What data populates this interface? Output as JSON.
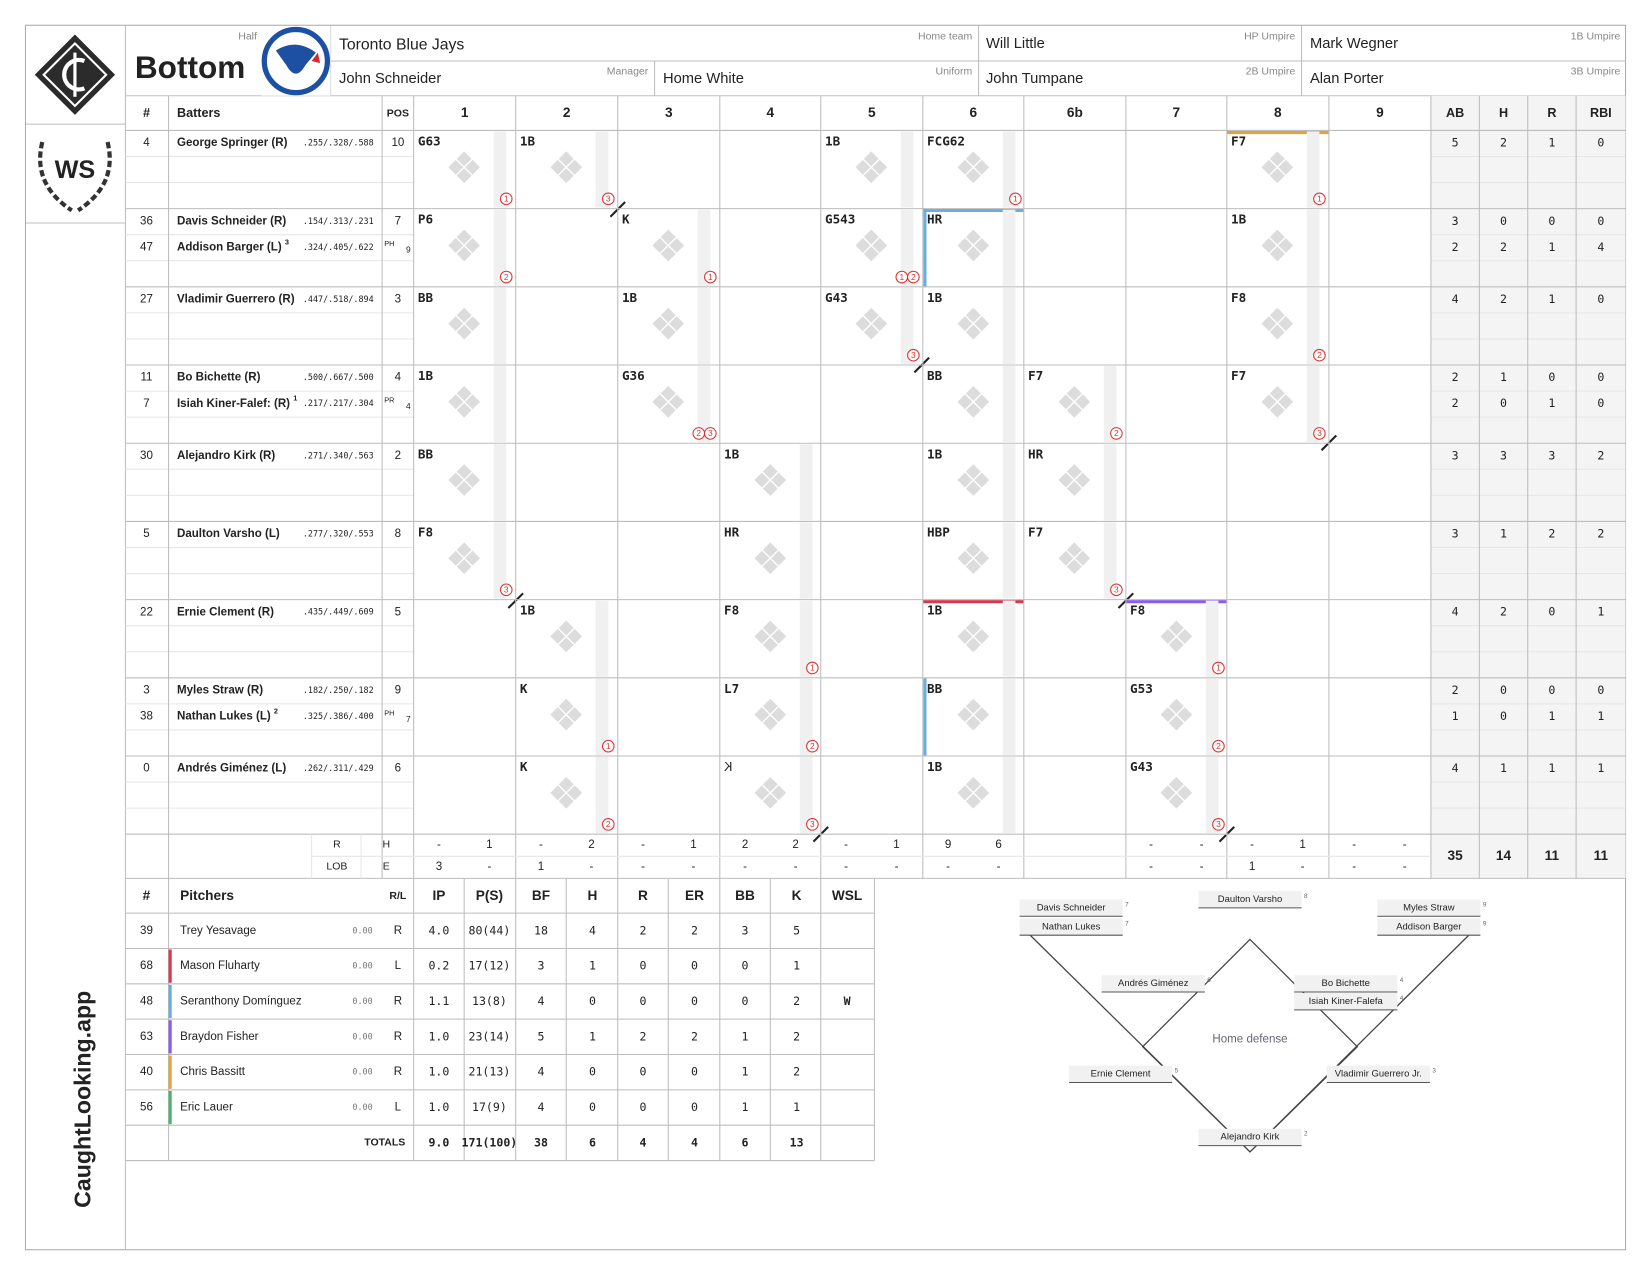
{
  "header": {
    "half_label": "Half",
    "half": "Bottom",
    "team": "Toronto Blue Jays",
    "team_label": "Home team",
    "manager": "John Schneider",
    "manager_label": "Manager",
    "uniform": "Home White",
    "uniform_label": "Uniform",
    "umpires": [
      {
        "name": "Will Little",
        "role": "HP Umpire"
      },
      {
        "name": "Mark Wegner",
        "role": "1B Umpire"
      },
      {
        "name": "John Tumpane",
        "role": "2B Umpire"
      },
      {
        "name": "Alan Porter",
        "role": "3B Umpire"
      }
    ]
  },
  "sidebar": {
    "badge": "WS",
    "brand": "CaughtLooking.app"
  },
  "lineup": {
    "columns": [
      "#",
      "Batters",
      "POS"
    ],
    "innings": [
      "1",
      "2",
      "3",
      "4",
      "5",
      "6",
      "6b",
      "7",
      "8",
      "9"
    ],
    "stats": [
      "AB",
      "H",
      "R",
      "RBI"
    ],
    "slots": [
      {
        "players": [
          {
            "num": 4,
            "name": "George Springer (R)",
            "avg": ".255/.328/.588",
            "pos": 10,
            "ab": 5,
            "h": 2,
            "r": 1,
            "rbi": 0
          }
        ],
        "plays": [
          {
            "result": "G63",
            "outs": [
              1
            ]
          },
          {
            "result": "1B",
            "outs": [
              3
            ]
          },
          null,
          null,
          {
            "result": "1B",
            "outs": []
          },
          {
            "result": "FCG62",
            "outs": [
              1
            ]
          },
          null,
          null,
          {
            "result": "F7",
            "outs": [
              1
            ]
          },
          null
        ]
      },
      {
        "players": [
          {
            "num": 36,
            "name": "Davis Schneider (R)",
            "avg": ".154/.313/.231",
            "pos": 7,
            "ab": 3,
            "h": 0,
            "r": 0,
            "rbi": 0
          },
          {
            "num": 47,
            "name": "Addison Barger (L)",
            "note": 3,
            "avg": ".324/.405/.622",
            "sub": "PH",
            "pos": 9,
            "ab": 2,
            "h": 2,
            "r": 1,
            "rbi": 4
          }
        ],
        "plays": [
          {
            "result": "P6",
            "outs": [
              2
            ]
          },
          null,
          {
            "result": "K",
            "outs": [
              1
            ]
          },
          null,
          {
            "result": "G543",
            "outs": [
              1,
              2
            ]
          },
          {
            "result": "HR",
            "outs": []
          },
          null,
          null,
          {
            "result": "1B",
            "outs": []
          },
          null
        ]
      },
      {
        "players": [
          {
            "num": 27,
            "name": "Vladimir Guerrero  (R)",
            "avg": ".447/.518/.894",
            "pos": 3,
            "ab": 4,
            "h": 2,
            "r": 1,
            "rbi": 0
          }
        ],
        "plays": [
          {
            "result": "BB",
            "outs": []
          },
          null,
          {
            "result": "1B",
            "outs": []
          },
          null,
          {
            "result": "G43",
            "outs": [
              3
            ]
          },
          {
            "result": "1B",
            "outs": []
          },
          null,
          null,
          {
            "result": "F8",
            "outs": [
              2
            ]
          },
          null
        ]
      },
      {
        "players": [
          {
            "num": 11,
            "name": "Bo Bichette  (R)",
            "avg": ".500/.667/.500",
            "pos": 4,
            "ab": 2,
            "h": 1,
            "r": 0,
            "rbi": 0
          },
          {
            "num": 7,
            "name": "Isiah Kiner-Falef: (R)",
            "note": 1,
            "avg": ".217/.217/.304",
            "sub": "PR",
            "pos": 4,
            "ab": 2,
            "h": 0,
            "r": 1,
            "rbi": 0
          }
        ],
        "plays": [
          {
            "result": "1B",
            "outs": []
          },
          null,
          {
            "result": "G36",
            "outs": [
              2,
              3
            ]
          },
          null,
          null,
          {
            "result": "BB",
            "outs": []
          },
          {
            "result": "F7",
            "outs": [
              2
            ]
          },
          null,
          {
            "result": "F7",
            "outs": [
              3
            ]
          },
          null
        ]
      },
      {
        "players": [
          {
            "num": 30,
            "name": "Alejandro Kirk  (R)",
            "avg": ".271/.340/.563",
            "pos": 2,
            "ab": 3,
            "h": 3,
            "r": 3,
            "rbi": 2
          }
        ],
        "plays": [
          {
            "result": "BB",
            "outs": []
          },
          null,
          null,
          {
            "result": "1B",
            "outs": []
          },
          null,
          {
            "result": "1B",
            "outs": []
          },
          {
            "result": "HR",
            "outs": []
          },
          null,
          null,
          null
        ]
      },
      {
        "players": [
          {
            "num": 5,
            "name": "Daulton Varsho  (L)",
            "avg": ".277/.320/.553",
            "pos": 8,
            "ab": 3,
            "h": 1,
            "r": 2,
            "rbi": 2
          }
        ],
        "plays": [
          {
            "result": "F8",
            "outs": [
              3
            ]
          },
          null,
          null,
          {
            "result": "HR",
            "outs": []
          },
          null,
          {
            "result": "HBP",
            "outs": []
          },
          {
            "result": "F7",
            "outs": [
              3
            ]
          },
          null,
          null,
          null
        ]
      },
      {
        "players": [
          {
            "num": 22,
            "name": "Ernie Clement  (R)",
            "avg": ".435/.449/.609",
            "pos": 5,
            "ab": 4,
            "h": 2,
            "r": 0,
            "rbi": 1
          }
        ],
        "plays": [
          null,
          {
            "result": "1B",
            "outs": []
          },
          null,
          {
            "result": "F8",
            "outs": [
              1
            ]
          },
          null,
          {
            "result": "1B",
            "outs": []
          },
          null,
          {
            "result": "F8",
            "outs": [
              1
            ]
          },
          null,
          null
        ]
      },
      {
        "players": [
          {
            "num": 3,
            "name": "Myles Straw  (R)",
            "avg": ".182/.250/.182",
            "pos": 9,
            "ab": 2,
            "h": 0,
            "r": 0,
            "rbi": 0
          },
          {
            "num": 38,
            "name": "Nathan Lukes  (L)",
            "note": 2,
            "avg": ".325/.386/.400",
            "sub": "PH",
            "pos": 7,
            "ab": 1,
            "h": 0,
            "r": 1,
            "rbi": 1
          }
        ],
        "plays": [
          null,
          {
            "result": "K",
            "outs": [
              1
            ]
          },
          null,
          {
            "result": "L7",
            "outs": [
              2
            ]
          },
          null,
          {
            "result": "BB",
            "outs": []
          },
          null,
          {
            "result": "G53",
            "outs": [
              2
            ]
          },
          null,
          null
        ]
      },
      {
        "players": [
          {
            "num": 0,
            "name": "Andrés Giménez  (L)",
            "avg": ".262/.311/.429",
            "pos": 6,
            "ab": 4,
            "h": 1,
            "r": 1,
            "rbi": 1
          }
        ],
        "plays": [
          null,
          {
            "result": "K",
            "outs": [
              2
            ]
          },
          null,
          {
            "result": "K",
            "called": true,
            "outs": [
              3
            ]
          },
          null,
          {
            "result": "1B",
            "outs": []
          },
          null,
          {
            "result": "G43",
            "outs": [
              3
            ]
          },
          null,
          null
        ]
      }
    ],
    "summary": {
      "labels": [
        "R",
        "H",
        "LOB",
        "E"
      ],
      "runs": [
        "-",
        "-",
        "-",
        2,
        "-",
        9,
        null,
        "-",
        "-",
        "-"
      ],
      "hits": [
        1,
        2,
        1,
        2,
        1,
        6,
        null,
        "-",
        1,
        "-"
      ],
      "lob": [
        3,
        1,
        "-",
        "-",
        "-",
        "-",
        null,
        "-",
        1,
        "-"
      ],
      "errors": [
        "-",
        "-",
        "-",
        "-",
        "-",
        "-",
        null,
        "-",
        "-",
        "-"
      ]
    },
    "totals": {
      "ab": 35,
      "h": 14,
      "r": 11,
      "rbi": 11
    }
  },
  "pitching": {
    "columns": [
      "#",
      "Pitchers",
      "R/L",
      "IP",
      "P(S)",
      "BF",
      "H",
      "R",
      "ER",
      "BB",
      "K",
      "WSL"
    ],
    "rows": [
      {
        "num": 39,
        "name": "Trey Yesavage",
        "era": "0.00",
        "hand": "R",
        "ip": "4.0",
        "ps": "80(44)",
        "bf": 18,
        "h": 4,
        "r": 2,
        "er": 2,
        "bb": 3,
        "k": 5
      },
      {
        "num": 68,
        "name": "Mason Fluharty",
        "era": "0.00",
        "hand": "L",
        "ip": "0.2",
        "ps": "17(12)",
        "bf": 3,
        "h": 1,
        "r": 0,
        "er": 0,
        "bb": 0,
        "k": 1,
        "color": "#d8394f"
      },
      {
        "num": 48,
        "name": "Seranthony Domínguez",
        "era": "0.00",
        "hand": "R",
        "ip": "1.1",
        "ps": "13(8)",
        "bf": 4,
        "h": 0,
        "r": 0,
        "er": 0,
        "bb": 0,
        "k": 2,
        "wsl": "W",
        "color": "#6aaee0"
      },
      {
        "num": 63,
        "name": "Braydon Fisher",
        "era": "0.00",
        "hand": "R",
        "ip": "1.0",
        "ps": "23(14)",
        "bf": 5,
        "h": 1,
        "r": 2,
        "er": 2,
        "bb": 1,
        "k": 2,
        "color": "#8b5cf0"
      },
      {
        "num": 40,
        "name": "Chris Bassitt",
        "era": "0.00",
        "hand": "R",
        "ip": "1.0",
        "ps": "21(13)",
        "bf": 4,
        "h": 0,
        "r": 0,
        "er": 0,
        "bb": 1,
        "k": 2,
        "color": "#e2a23c"
      },
      {
        "num": 56,
        "name": "Eric Lauer",
        "era": "0.00",
        "hand": "L",
        "ip": "1.0",
        "ps": "17(9)",
        "bf": 4,
        "h": 0,
        "r": 0,
        "er": 0,
        "bb": 1,
        "k": 1,
        "color": "#4cb26c"
      }
    ],
    "totals": {
      "label": "TOTALS",
      "ip": "9.0",
      "ps": "171(100)",
      "bf": 38,
      "h": 6,
      "r": 4,
      "er": 4,
      "bb": 6,
      "k": 13
    }
  },
  "defense": {
    "title": "Home defense",
    "positions": [
      {
        "name": "Davis Schneider",
        "pos": 7
      },
      {
        "name": "Nathan Lukes",
        "pos": 7
      },
      {
        "name": "Daulton Varsho",
        "pos": 8
      },
      {
        "name": "Myles Straw",
        "pos": 9
      },
      {
        "name": "Addison Barger",
        "pos": 9
      },
      {
        "name": "Andrés Giménez",
        "pos": 6
      },
      {
        "name": "Bo Bichette",
        "pos": 4
      },
      {
        "name": "Isiah Kiner-Falefa",
        "pos": 4
      },
      {
        "name": "Ernie Clement",
        "pos": 5
      },
      {
        "name": "Vladimir Guerrero Jr.",
        "pos": 3
      },
      {
        "name": "Alejandro Kirk",
        "pos": 2
      }
    ]
  }
}
